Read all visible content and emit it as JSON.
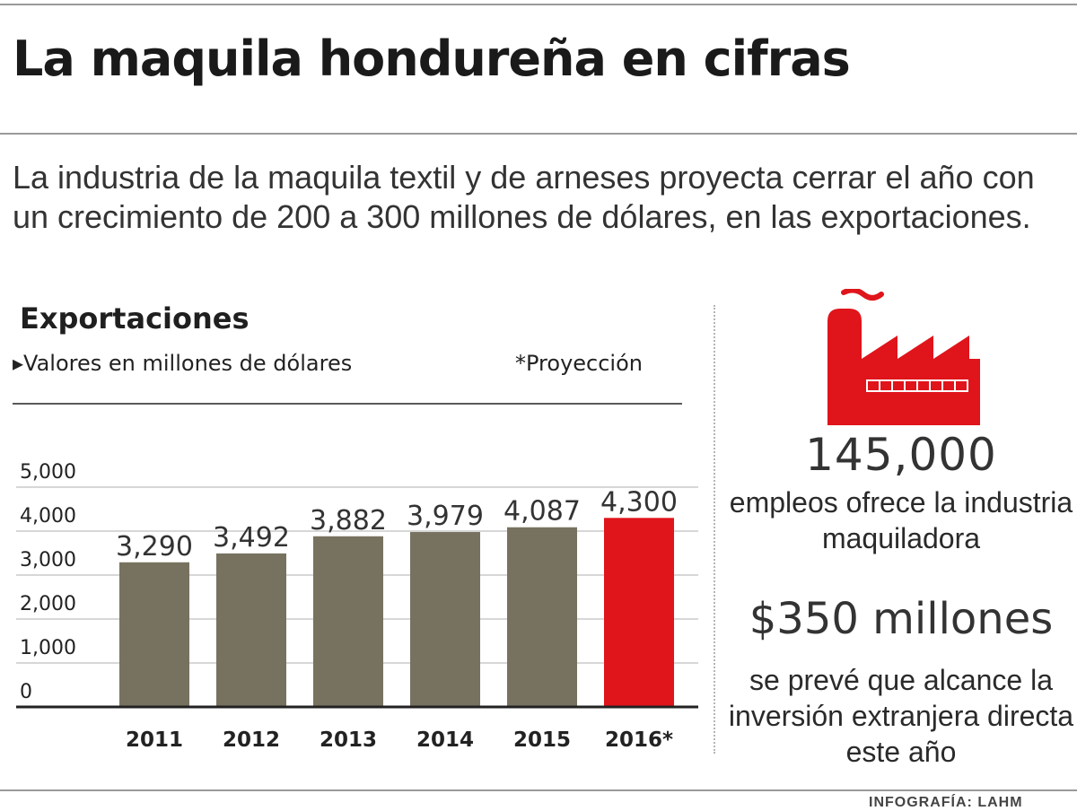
{
  "headline": "La maquila hondureña en cifras",
  "intro": "La industria de la maquila textil y de arneses proyecta cerrar el año con un crecimiento de 200 a 300 millones de dólares, en las exportaciones.",
  "chart_data": {
    "type": "bar",
    "title": "Exportaciones",
    "subtitle": "▸Valores en millones de dólares",
    "note": "*Proyección",
    "categories": [
      "2011",
      "2012",
      "2013",
      "2014",
      "2015",
      "2016*"
    ],
    "values": [
      3290,
      3492,
      3882,
      3979,
      4087,
      4300
    ],
    "value_labels": [
      "3,290",
      "3,492",
      "3,882",
      "3,979",
      "4,087",
      "4,300"
    ],
    "projected": [
      false,
      false,
      false,
      false,
      false,
      true
    ],
    "yticks": [
      0,
      1000,
      2000,
      3000,
      4000,
      5000
    ],
    "ytick_labels": [
      "0",
      "1,000",
      "2,000",
      "3,000",
      "4,000",
      "5,000"
    ],
    "ylim": [
      0,
      5000
    ],
    "grid": true,
    "legend": "none",
    "colors": {
      "bar": "#77725f",
      "projection": "#e0141b",
      "grid": "#d7d7d7",
      "axis": "#222222"
    }
  },
  "stats": {
    "jobs": {
      "value": "145,000",
      "description": "empleos ofrece la industria maquiladora"
    },
    "investment": {
      "value": "$350 millones",
      "description": "se prevé que alcance la inversión extranjera directa este año"
    }
  },
  "icon": {
    "name": "factory-icon",
    "color": "#e0141b"
  },
  "credit": "INFOGRAFÍA: LAHM"
}
